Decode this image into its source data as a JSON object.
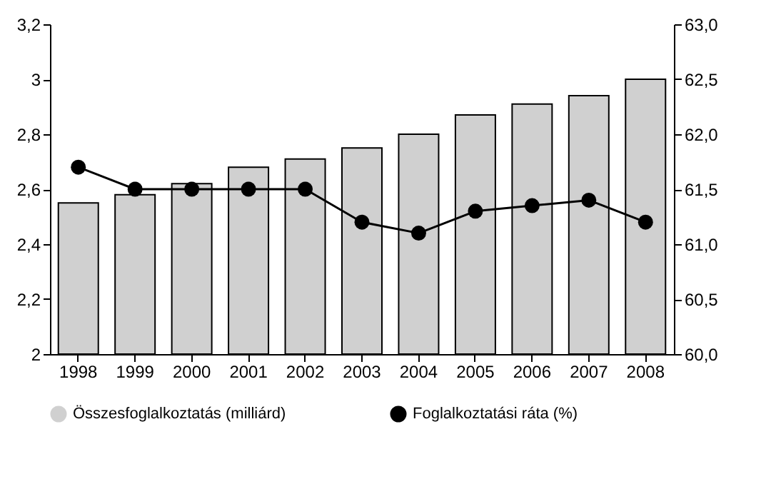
{
  "chart_data": {
    "type": "bar",
    "categories": [
      "1998",
      "1999",
      "2000",
      "2001",
      "2002",
      "2003",
      "2004",
      "2005",
      "2006",
      "2007",
      "2008"
    ],
    "series": [
      {
        "name": "Összesfoglalkoztatás (milliárd)",
        "color": "#d0d0d0",
        "values": [
          2.55,
          2.58,
          2.62,
          2.68,
          2.71,
          2.75,
          2.8,
          2.87,
          2.91,
          2.94,
          3.0
        ]
      },
      {
        "name": "Foglalkoztatási ráta (%)",
        "type": "line",
        "axis": "y2",
        "color": "#000000",
        "values": [
          61.7,
          61.5,
          61.5,
          61.5,
          61.5,
          61.2,
          61.1,
          61.3,
          61.35,
          61.4,
          61.2
        ]
      }
    ],
    "ylim": [
      2,
      3.2
    ],
    "yticks": [
      2,
      {
        "value": 2.2,
        "label": "2,2"
      },
      {
        "value": 2.4,
        "label": "2,4"
      },
      {
        "value": 2.6,
        "label": "2,6"
      },
      {
        "value": 2.8,
        "label": "2,8"
      },
      3,
      {
        "value": 3.2,
        "label": "3,2"
      }
    ],
    "y2lim": [
      60,
      63
    ],
    "y2ticks": [
      {
        "value": 60,
        "label": "60,0"
      },
      {
        "value": 60.5,
        "label": "60,5"
      },
      {
        "value": 61,
        "label": "61,0"
      },
      {
        "value": 61.5,
        "label": "61,5"
      },
      {
        "value": 62,
        "label": "62,0"
      },
      {
        "value": 62.5,
        "label": "62,5"
      },
      {
        "value": 63,
        "label": "63,0"
      }
    ],
    "legend": "bottom",
    "marker": "circle",
    "line_style": "solid",
    "grid": false
  }
}
